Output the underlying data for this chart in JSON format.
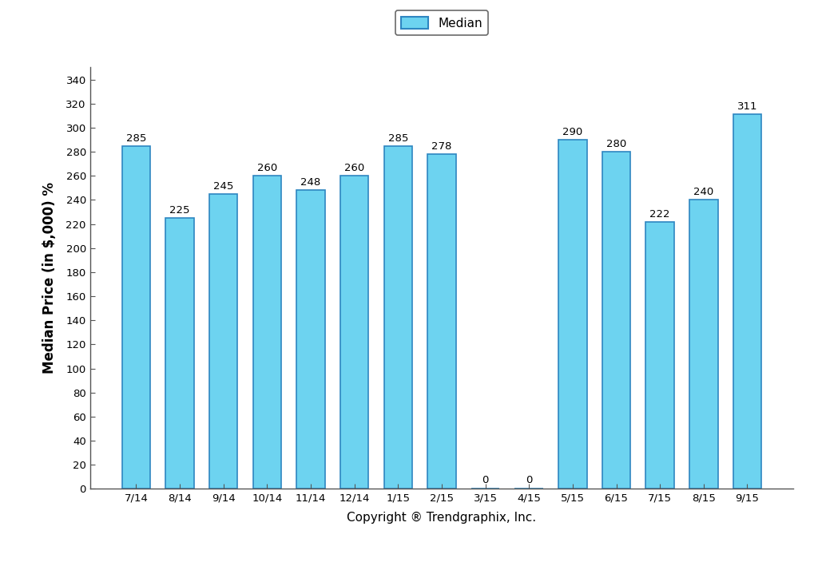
{
  "categories": [
    "7/14",
    "8/14",
    "9/14",
    "10/14",
    "11/14",
    "12/14",
    "1/15",
    "2/15",
    "3/15",
    "4/15",
    "5/15",
    "6/15",
    "7/15",
    "8/15",
    "9/15"
  ],
  "values": [
    285,
    225,
    245,
    260,
    248,
    260,
    285,
    278,
    0,
    0,
    290,
    280,
    222,
    240,
    311
  ],
  "bar_color": "#6DD3F0",
  "bar_edge_color": "#2E86C1",
  "ylabel": "Median Price (in $,000) %",
  "xlabel": "Copyright ® Trendgraphix, Inc.",
  "legend_label": "Median",
  "ylim": [
    0,
    350
  ],
  "yticks": [
    0,
    20,
    40,
    60,
    80,
    100,
    120,
    140,
    160,
    180,
    200,
    220,
    240,
    260,
    280,
    300,
    320,
    340
  ],
  "label_fontsize": 9.5,
  "tick_fontsize": 9.5,
  "ylabel_fontsize": 12,
  "xlabel_fontsize": 11,
  "bar_width": 0.65,
  "background_color": "#FFFFFF",
  "legend_box_color": "#6DD3F0",
  "legend_box_edge_color": "#2E86C1",
  "spine_color": "#555555"
}
